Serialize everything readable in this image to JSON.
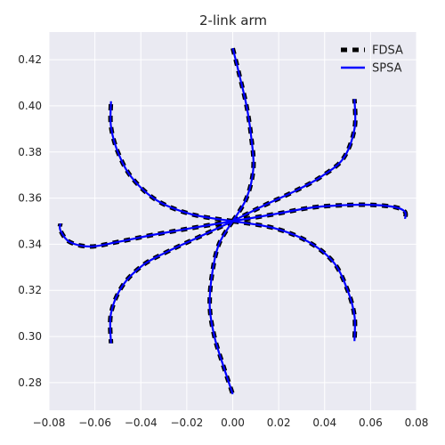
{
  "chart_data": {
    "type": "line",
    "title": "2-link arm",
    "xlabel": "",
    "ylabel": "",
    "xlim": [
      -0.08,
      0.08
    ],
    "ylim": [
      0.268,
      0.432
    ],
    "xticks": [
      -0.08,
      -0.06,
      -0.04,
      -0.02,
      0.0,
      0.02,
      0.04,
      0.06,
      0.08
    ],
    "xtick_labels": [
      "−0.08",
      "−0.06",
      "−0.04",
      "−0.02",
      "0.00",
      "0.02",
      "0.04",
      "0.06",
      "0.08"
    ],
    "yticks": [
      0.28,
      0.3,
      0.32,
      0.34,
      0.36,
      0.38,
      0.4,
      0.42
    ],
    "ytick_labels": [
      "0.28",
      "0.30",
      "0.32",
      "0.34",
      "0.36",
      "0.38",
      "0.40",
      "0.42"
    ],
    "grid": true,
    "background": "#eaeaf2",
    "legend_position": "top-right",
    "series": [
      {
        "name": "FDSA",
        "style": "dashed",
        "color": "#000000",
        "paths": [
          [
            [
              0.0,
              0.35
            ],
            [
              0.006,
              0.36
            ],
            [
              0.009,
              0.373
            ],
            [
              0.008,
              0.387
            ],
            [
              0.006,
              0.4
            ],
            [
              0.003,
              0.413
            ],
            [
              0.0,
              0.425
            ]
          ],
          [
            [
              0.0,
              0.35
            ],
            [
              0.014,
              0.357
            ],
            [
              0.027,
              0.363
            ],
            [
              0.038,
              0.369
            ],
            [
              0.048,
              0.377
            ],
            [
              0.053,
              0.39
            ],
            [
              0.053,
              0.403
            ]
          ],
          [
            [
              0.0,
              0.35
            ],
            [
              0.018,
              0.353
            ],
            [
              0.035,
              0.356
            ],
            [
              0.05,
              0.357
            ],
            [
              0.062,
              0.357
            ],
            [
              0.071,
              0.356
            ],
            [
              0.075,
              0.354
            ],
            [
              0.075,
              0.351
            ]
          ],
          [
            [
              0.0,
              0.35
            ],
            [
              0.018,
              0.347
            ],
            [
              0.033,
              0.341
            ],
            [
              0.044,
              0.332
            ],
            [
              0.05,
              0.32
            ],
            [
              0.053,
              0.309
            ],
            [
              0.053,
              0.298
            ]
          ],
          [
            [
              0.0,
              0.35
            ],
            [
              -0.006,
              0.34
            ],
            [
              -0.009,
              0.327
            ],
            [
              -0.01,
              0.313
            ],
            [
              -0.008,
              0.3
            ],
            [
              -0.004,
              0.287
            ],
            [
              0.0,
              0.275
            ]
          ],
          [
            [
              0.0,
              0.35
            ],
            [
              -0.015,
              0.343
            ],
            [
              -0.028,
              0.337
            ],
            [
              -0.039,
              0.331
            ],
            [
              -0.048,
              0.322
            ],
            [
              -0.053,
              0.31
            ],
            [
              -0.053,
              0.297
            ]
          ],
          [
            [
              0.0,
              0.35
            ],
            [
              -0.018,
              0.347
            ],
            [
              -0.035,
              0.344
            ],
            [
              -0.05,
              0.341
            ],
            [
              -0.062,
              0.339
            ],
            [
              -0.071,
              0.341
            ],
            [
              -0.075,
              0.346
            ],
            [
              -0.075,
              0.349
            ]
          ],
          [
            [
              0.0,
              0.35
            ],
            [
              -0.018,
              0.353
            ],
            [
              -0.033,
              0.359
            ],
            [
              -0.044,
              0.369
            ],
            [
              -0.05,
              0.38
            ],
            [
              -0.053,
              0.391
            ],
            [
              -0.053,
              0.402
            ]
          ]
        ]
      },
      {
        "name": "SPSA",
        "style": "solid",
        "color": "#0000ff",
        "paths": [
          [
            [
              0.0,
              0.35
            ],
            [
              0.006,
              0.36
            ],
            [
              0.009,
              0.373
            ],
            [
              0.008,
              0.387
            ],
            [
              0.006,
              0.4
            ],
            [
              0.003,
              0.413
            ],
            [
              0.0,
              0.425
            ]
          ],
          [
            [
              0.0,
              0.35
            ],
            [
              0.014,
              0.357
            ],
            [
              0.027,
              0.363
            ],
            [
              0.038,
              0.369
            ],
            [
              0.048,
              0.377
            ],
            [
              0.053,
              0.39
            ],
            [
              0.053,
              0.403
            ]
          ],
          [
            [
              0.0,
              0.35
            ],
            [
              0.018,
              0.353
            ],
            [
              0.035,
              0.356
            ],
            [
              0.05,
              0.357
            ],
            [
              0.062,
              0.357
            ],
            [
              0.071,
              0.356
            ],
            [
              0.075,
              0.354
            ],
            [
              0.075,
              0.351
            ]
          ],
          [
            [
              0.0,
              0.35
            ],
            [
              0.018,
              0.347
            ],
            [
              0.033,
              0.341
            ],
            [
              0.044,
              0.332
            ],
            [
              0.05,
              0.32
            ],
            [
              0.053,
              0.309
            ],
            [
              0.053,
              0.298
            ]
          ],
          [
            [
              0.0,
              0.35
            ],
            [
              -0.006,
              0.34
            ],
            [
              -0.009,
              0.327
            ],
            [
              -0.01,
              0.313
            ],
            [
              -0.008,
              0.3
            ],
            [
              -0.004,
              0.287
            ],
            [
              0.0,
              0.275
            ]
          ],
          [
            [
              0.0,
              0.35
            ],
            [
              -0.015,
              0.343
            ],
            [
              -0.028,
              0.337
            ],
            [
              -0.039,
              0.331
            ],
            [
              -0.048,
              0.322
            ],
            [
              -0.053,
              0.31
            ],
            [
              -0.053,
              0.297
            ]
          ],
          [
            [
              0.0,
              0.35
            ],
            [
              -0.018,
              0.347
            ],
            [
              -0.035,
              0.344
            ],
            [
              -0.05,
              0.341
            ],
            [
              -0.062,
              0.339
            ],
            [
              -0.071,
              0.341
            ],
            [
              -0.075,
              0.346
            ],
            [
              -0.075,
              0.349
            ]
          ],
          [
            [
              0.0,
              0.35
            ],
            [
              -0.018,
              0.353
            ],
            [
              -0.033,
              0.359
            ],
            [
              -0.044,
              0.369
            ],
            [
              -0.05,
              0.38
            ],
            [
              -0.053,
              0.391
            ],
            [
              -0.053,
              0.402
            ]
          ]
        ]
      }
    ]
  }
}
